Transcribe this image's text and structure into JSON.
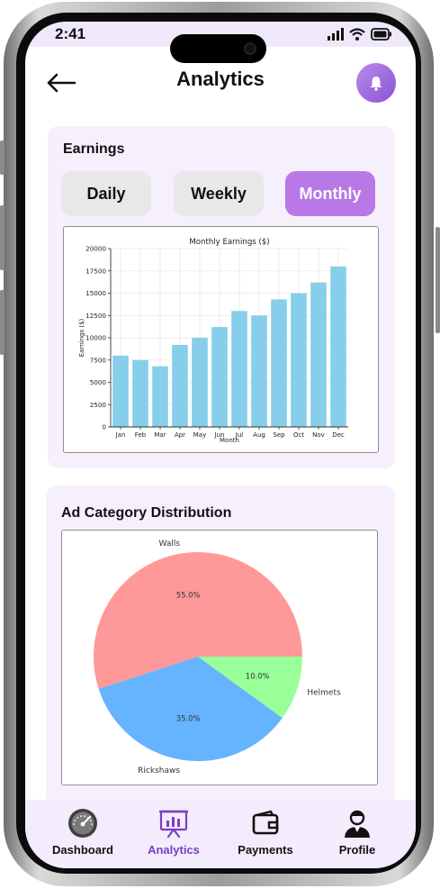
{
  "status_bar": {
    "time": "2:41"
  },
  "header": {
    "title": "Analytics",
    "back_icon": "arrow-left-icon",
    "bell_icon": "bell-icon"
  },
  "earnings": {
    "title": "Earnings",
    "tabs": [
      {
        "label": "Daily",
        "active": false
      },
      {
        "label": "Weekly",
        "active": false
      },
      {
        "label": "Monthly",
        "active": true
      }
    ]
  },
  "ad_distribution": {
    "title": "Ad Category Distribution"
  },
  "nav": {
    "items": [
      {
        "label": "Dashboard",
        "icon": "speedometer-icon",
        "active": false
      },
      {
        "label": "Analytics",
        "icon": "presentation-chart-icon",
        "active": true
      },
      {
        "label": "Payments",
        "icon": "wallet-icon",
        "active": false
      },
      {
        "label": "Profile",
        "icon": "person-icon",
        "active": false
      }
    ]
  },
  "colors": {
    "accent": "#b878e6",
    "bar": "#87ceeb",
    "walls": "#ff9999",
    "rickshaws": "#66b3ff",
    "helmets": "#99ff99"
  },
  "chart_data": [
    {
      "type": "bar",
      "title": "Monthly Earnings ($)",
      "xlabel": "Month",
      "ylabel": "Earnings ($)",
      "categories": [
        "Jan",
        "Feb",
        "Mar",
        "Apr",
        "May",
        "Jun",
        "Jul",
        "Aug",
        "Sep",
        "Oct",
        "Nov",
        "Dec"
      ],
      "values": [
        8000,
        7500,
        6800,
        9200,
        10000,
        11200,
        13000,
        12500,
        14300,
        15000,
        16200,
        18000
      ],
      "ylim": [
        0,
        20000
      ],
      "yticks": [
        0,
        2500,
        5000,
        7500,
        10000,
        12500,
        15000,
        17500,
        20000
      ],
      "grid": true
    },
    {
      "type": "pie",
      "slices": [
        {
          "label": "Walls",
          "value": 55.0,
          "pct_label": "55.0%"
        },
        {
          "label": "Rickshaws",
          "value": 35.0,
          "pct_label": "35.0%"
        },
        {
          "label": "Helmets",
          "value": 10.0,
          "pct_label": "10.0%"
        }
      ]
    }
  ]
}
